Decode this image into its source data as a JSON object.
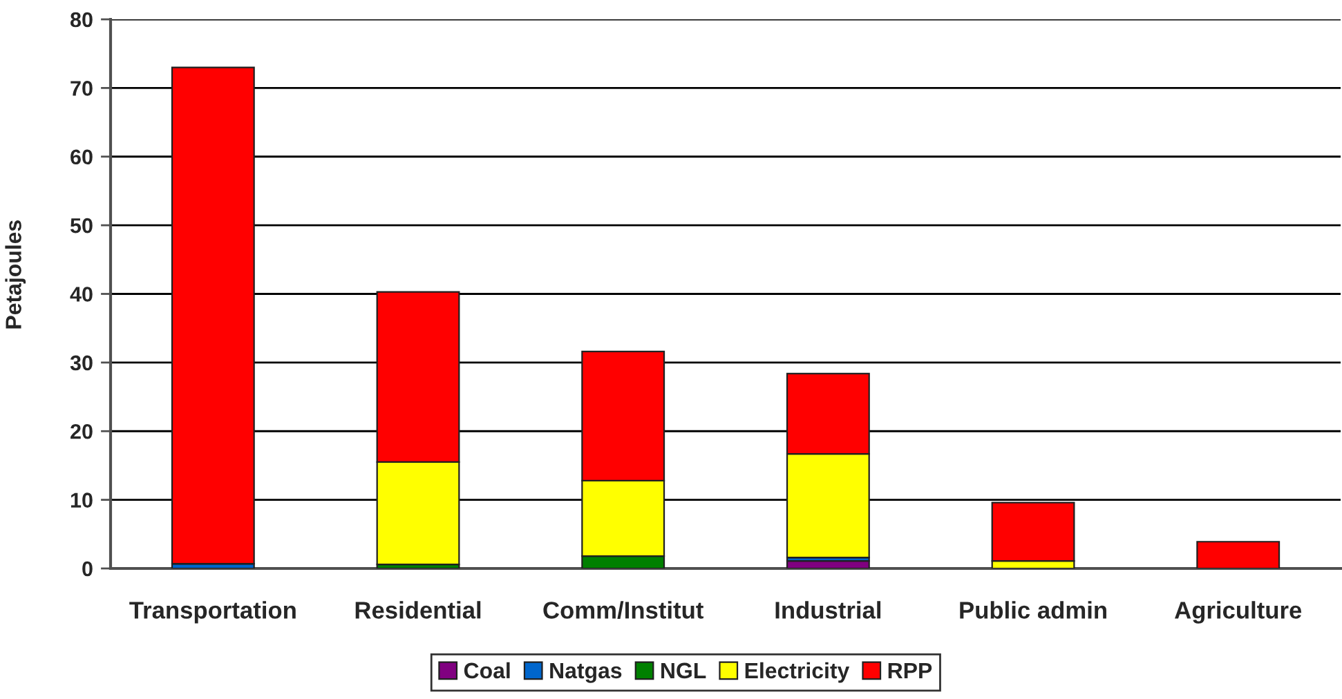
{
  "chart_data": {
    "type": "bar",
    "stacked": true,
    "ylabel": "Petajoules",
    "categories": [
      "Transportation",
      "Residential",
      "Comm/Institut",
      "Industrial",
      "Public admin",
      "Agriculture"
    ],
    "series": [
      {
        "name": "Coal",
        "color": "#800080",
        "values": [
          0,
          0,
          0,
          1.1,
          0,
          0
        ]
      },
      {
        "name": "Natgas",
        "color": "#0066cc",
        "values": [
          0.7,
          0,
          0,
          0.5,
          0,
          0
        ]
      },
      {
        "name": "NGL",
        "color": "#008000",
        "values": [
          0,
          0.6,
          1.8,
          0,
          0,
          0
        ]
      },
      {
        "name": "Electricity",
        "color": "#ffff00",
        "values": [
          0,
          14.9,
          11.0,
          15.1,
          1.1,
          0
        ]
      },
      {
        "name": "RPP",
        "color": "#ff0000",
        "values": [
          72.3,
          24.8,
          18.8,
          11.7,
          8.5,
          3.9
        ]
      }
    ],
    "ylim": [
      0,
      80
    ],
    "yticks": [
      0,
      10,
      20,
      30,
      40,
      50,
      60,
      70,
      80
    ],
    "grid": "y",
    "legend": "bottom"
  }
}
